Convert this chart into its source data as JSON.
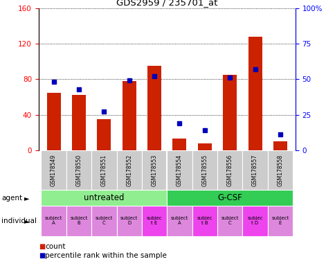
{
  "title": "GDS2959 / 235701_at",
  "samples": [
    "GSM178549",
    "GSM178550",
    "GSM178551",
    "GSM178552",
    "GSM178553",
    "GSM178554",
    "GSM178555",
    "GSM178556",
    "GSM178557",
    "GSM178558"
  ],
  "counts": [
    65,
    62,
    35,
    78,
    95,
    13,
    8,
    85,
    128,
    10
  ],
  "percentile_ranks": [
    48,
    43,
    27,
    49,
    52,
    19,
    14,
    51,
    57,
    11
  ],
  "ylim_left": [
    0,
    160
  ],
  "ylim_right": [
    0,
    100
  ],
  "yticks_left": [
    0,
    40,
    80,
    120,
    160
  ],
  "ytick_labels_left": [
    "0",
    "40",
    "80",
    "120",
    "160"
  ],
  "yticks_right": [
    0,
    25,
    50,
    75,
    100
  ],
  "ytick_labels_right": [
    "0",
    "25",
    "50",
    "75",
    "100%"
  ],
  "agent_groups": [
    {
      "label": "untreated",
      "start": 0,
      "end": 5,
      "color": "#90EE90"
    },
    {
      "label": "G-CSF",
      "start": 5,
      "end": 10,
      "color": "#33CC55"
    }
  ],
  "individuals": [
    "subject\nA",
    "subject\nB",
    "subject\nC",
    "subject\nD",
    "subjec\nt E",
    "subject\nA",
    "subjec\nt B",
    "subject\nC",
    "subjec\nt D",
    "subject\nE"
  ],
  "individual_colors": [
    "#DD88DD",
    "#DD88DD",
    "#DD88DD",
    "#DD88DD",
    "#EE44EE",
    "#DD88DD",
    "#EE44EE",
    "#DD88DD",
    "#EE44EE",
    "#DD88DD"
  ],
  "bar_color": "#CC2200",
  "dot_color": "#0000BB",
  "bar_width": 0.55,
  "sample_bg_color": "#CCCCCC",
  "sample_bg_color_alt": "#BBBBBB"
}
